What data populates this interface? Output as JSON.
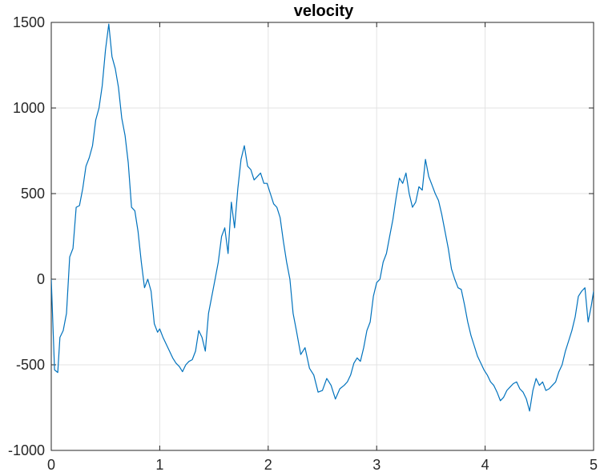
{
  "chart_data": {
    "type": "line",
    "title": "velocity",
    "xlabel": "",
    "ylabel": "",
    "xlim": [
      0,
      5
    ],
    "ylim": [
      -1000,
      1500
    ],
    "xticks": [
      0,
      1,
      2,
      3,
      4,
      5
    ],
    "xtick_labels": [
      "0",
      "1",
      "2",
      "3",
      "4",
      "5"
    ],
    "yticks": [
      -1000,
      -500,
      0,
      500,
      1000,
      1500
    ],
    "ytick_labels": [
      "-1000",
      "-500",
      "0",
      "500",
      "1000",
      "1500"
    ],
    "grid": true,
    "line_color": "#0072BD",
    "series": [
      {
        "x": [
          0,
          0.03,
          0.06,
          0.08,
          0.11,
          0.14,
          0.17,
          0.2,
          0.23,
          0.26,
          0.29,
          0.32,
          0.35,
          0.38,
          0.41,
          0.44,
          0.47,
          0.5,
          0.53,
          0.56,
          0.59,
          0.62,
          0.65,
          0.68,
          0.71,
          0.74,
          0.77,
          0.8,
          0.83,
          0.86,
          0.89,
          0.92,
          0.95,
          0.98,
          1.0,
          1.03,
          1.06,
          1.09,
          1.12,
          1.15,
          1.18,
          1.21,
          1.24,
          1.27,
          1.3,
          1.33,
          1.36,
          1.39,
          1.42,
          1.45,
          1.48,
          1.51,
          1.54,
          1.57,
          1.6,
          1.63,
          1.66,
          1.69,
          1.72,
          1.75,
          1.78,
          1.81,
          1.84,
          1.87,
          1.9,
          1.93,
          1.96,
          1.99,
          2.02,
          2.05,
          2.08,
          2.11,
          2.14,
          2.17,
          2.2,
          2.23,
          2.26,
          2.3,
          2.34,
          2.38,
          2.42,
          2.46,
          2.5,
          2.54,
          2.58,
          2.62,
          2.66,
          2.7,
          2.73,
          2.76,
          2.79,
          2.82,
          2.85,
          2.88,
          2.91,
          2.94,
          2.97,
          3.0,
          3.03,
          3.06,
          3.09,
          3.12,
          3.15,
          3.18,
          3.21,
          3.24,
          3.27,
          3.3,
          3.33,
          3.36,
          3.39,
          3.42,
          3.45,
          3.48,
          3.51,
          3.54,
          3.57,
          3.6,
          3.63,
          3.66,
          3.69,
          3.72,
          3.75,
          3.78,
          3.81,
          3.84,
          3.87,
          3.9,
          3.93,
          3.96,
          3.99,
          4.02,
          4.05,
          4.08,
          4.11,
          4.14,
          4.17,
          4.2,
          4.23,
          4.26,
          4.29,
          4.32,
          4.35,
          4.38,
          4.41,
          4.44,
          4.47,
          4.5,
          4.53,
          4.56,
          4.59,
          4.62,
          4.65,
          4.68,
          4.71,
          4.74,
          4.77,
          4.8,
          4.83,
          4.86,
          4.89,
          4.92,
          4.95,
          4.98,
          5.0
        ],
        "y": [
          0,
          -530,
          -545,
          -340,
          -300,
          -200,
          130,
          180,
          420,
          430,
          530,
          660,
          710,
          780,
          930,
          1000,
          1130,
          1340,
          1490,
          1300,
          1230,
          1120,
          940,
          840,
          680,
          420,
          400,
          280,
          100,
          -50,
          0,
          -70,
          -260,
          -310,
          -290,
          -340,
          -380,
          -420,
          -460,
          -490,
          -510,
          -540,
          -500,
          -480,
          -470,
          -420,
          -300,
          -340,
          -420,
          -200,
          -100,
          0,
          100,
          250,
          300,
          150,
          450,
          300,
          530,
          700,
          780,
          660,
          640,
          580,
          600,
          620,
          560,
          560,
          500,
          440,
          420,
          360,
          220,
          100,
          0,
          -200,
          -300,
          -440,
          -400,
          -520,
          -560,
          -660,
          -650,
          -580,
          -620,
          -700,
          -640,
          -620,
          -600,
          -560,
          -490,
          -460,
          -480,
          -400,
          -300,
          -250,
          -100,
          -20,
          0,
          100,
          150,
          250,
          350,
          480,
          590,
          560,
          620,
          500,
          420,
          450,
          540,
          520,
          700,
          600,
          550,
          500,
          460,
          380,
          280,
          180,
          60,
          0,
          -50,
          -60,
          -150,
          -250,
          -330,
          -390,
          -450,
          -490,
          -530,
          -560,
          -600,
          -620,
          -660,
          -710,
          -690,
          -650,
          -630,
          -610,
          -600,
          -640,
          -660,
          -700,
          -770,
          -650,
          -580,
          -620,
          -600,
          -650,
          -640,
          -620,
          -600,
          -540,
          -500,
          -420,
          -360,
          -300,
          -220,
          -100,
          -70,
          -50,
          -250,
          -150,
          -70
        ]
      }
    ]
  }
}
